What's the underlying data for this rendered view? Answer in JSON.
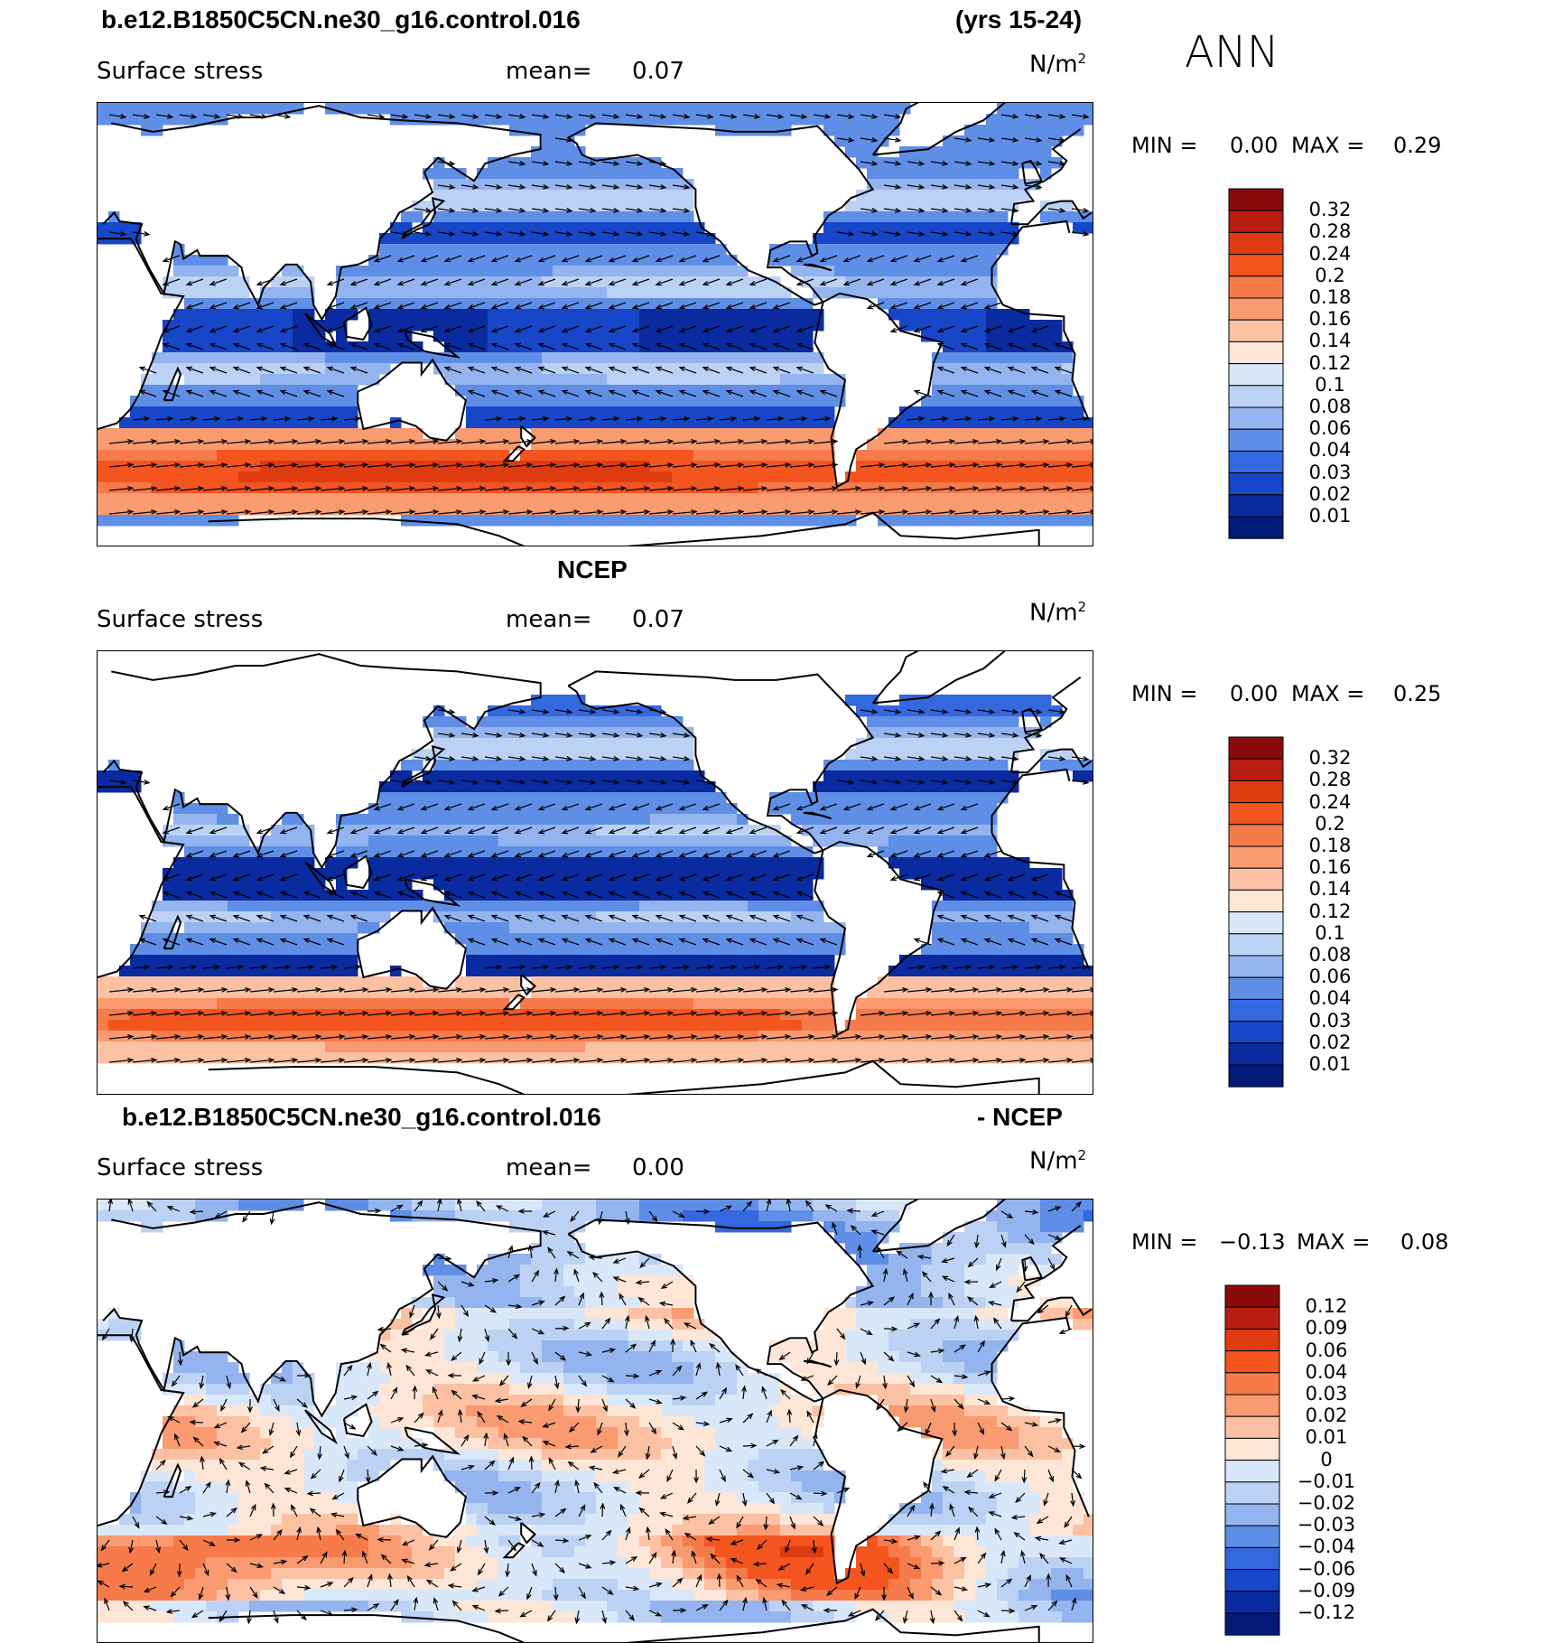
{
  "season": "ANN",
  "panels": [
    {
      "id": "model",
      "title_left": "b.e12.B1850C5CN.ne30_g16.control.016",
      "title_right": "(yrs 15-24)",
      "variable": "Surface stress",
      "mean_label": "mean=",
      "mean_value": "0.07",
      "units": "N/m",
      "units_sup": "2",
      "min_label": "MIN =",
      "min_value": "0.00",
      "max_label": "MAX =",
      "max_value": "0.29"
    },
    {
      "id": "obs",
      "title_center": "NCEP",
      "variable": "Surface stress",
      "mean_label": "mean=",
      "mean_value": "0.07",
      "units": "N/m",
      "units_sup": "2",
      "min_label": "MIN =",
      "min_value": "0.00",
      "max_label": "MAX =",
      "max_value": "0.25"
    },
    {
      "id": "diff",
      "title_left": "b.e12.B1850C5CN.ne30_g16.control.016",
      "title_right": "- NCEP",
      "variable": "Surface stress",
      "mean_label": "mean=",
      "mean_value": "0.00",
      "units": "N/m",
      "units_sup": "2",
      "min_label": "MIN =",
      "min_value": "−0.13",
      "max_label": "MAX =",
      "max_value": "0.08"
    }
  ],
  "chart_data": [
    {
      "type": "heatmap",
      "title": "b.e12.B1850C5CN.ne30_g16.control.016 (yrs 15-24) Surface stress",
      "variable": "Surface stress",
      "units": "N/m2",
      "mean": 0.07,
      "min": 0.0,
      "max": 0.29,
      "colorbar_levels": [
        "0.32",
        "0.28",
        "0.24",
        "0.2",
        "0.18",
        "0.16",
        "0.14",
        "0.12",
        "0.1",
        "0.08",
        "0.06",
        "0.04",
        "0.03",
        "0.02",
        "0.01"
      ],
      "colorbar_colors": [
        "#8b0a0a",
        "#b81d12",
        "#df3b10",
        "#f4551e",
        "#f67a4a",
        "#f99a70",
        "#fcc0a2",
        "#fde6d5",
        "#d9e8f9",
        "#bcd2f4",
        "#93b4ee",
        "#5f8ee7",
        "#3368df",
        "#1746c8",
        "#0a2aa0",
        "#031a78"
      ],
      "overlay": "vector wind stress arrows"
    },
    {
      "type": "heatmap",
      "title": "NCEP Surface stress",
      "variable": "Surface stress",
      "units": "N/m2",
      "mean": 0.07,
      "min": 0.0,
      "max": 0.25,
      "colorbar_levels": [
        "0.32",
        "0.28",
        "0.24",
        "0.2",
        "0.18",
        "0.16",
        "0.14",
        "0.12",
        "0.1",
        "0.08",
        "0.06",
        "0.04",
        "0.03",
        "0.02",
        "0.01"
      ],
      "colorbar_colors": [
        "#8b0a0a",
        "#b81d12",
        "#df3b10",
        "#f4551e",
        "#f67a4a",
        "#f99a70",
        "#fcc0a2",
        "#fde6d5",
        "#d9e8f9",
        "#bcd2f4",
        "#93b4ee",
        "#5f8ee7",
        "#3368df",
        "#1746c8",
        "#0a2aa0",
        "#031a78"
      ],
      "overlay": "vector wind stress arrows"
    },
    {
      "type": "heatmap",
      "title": "b.e12.B1850C5CN.ne30_g16.control.016 - NCEP Surface stress",
      "variable": "Surface stress",
      "units": "N/m2",
      "mean": 0.0,
      "min": -0.13,
      "max": 0.08,
      "colorbar_levels": [
        "0.12",
        "0.09",
        "0.06",
        "0.04",
        "0.03",
        "0.02",
        "0.01",
        "0",
        "−0.01",
        "−0.02",
        "−0.03",
        "−0.04",
        "−0.06",
        "−0.09",
        "−0.12"
      ],
      "colorbar_colors": [
        "#8b0a0a",
        "#b81d12",
        "#df3b10",
        "#f4551e",
        "#f67a4a",
        "#f99a70",
        "#fcc0a2",
        "#fde6d5",
        "#d9e8f9",
        "#bcd2f4",
        "#93b4ee",
        "#5f8ee7",
        "#3368df",
        "#1746c8",
        "#0a2aa0",
        "#031a78"
      ],
      "overlay": "vector wind stress difference arrows"
    }
  ]
}
